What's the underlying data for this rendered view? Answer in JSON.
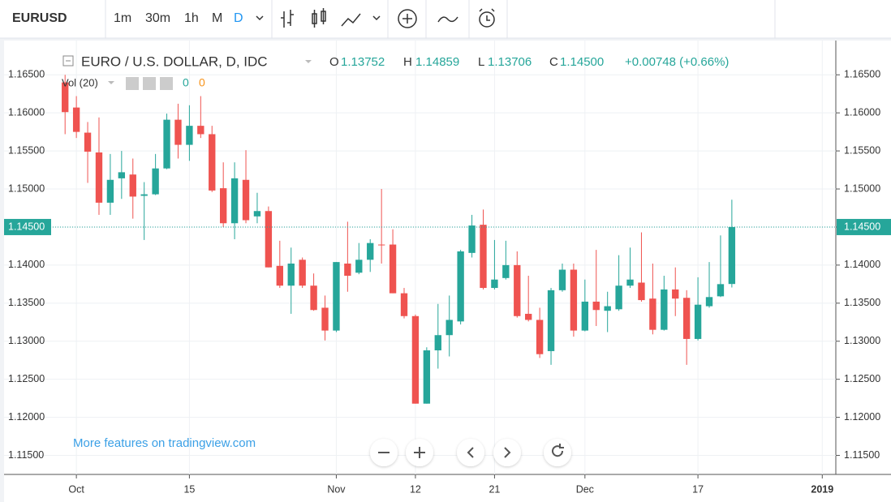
{
  "toolbar": {
    "symbol": "EURUSD",
    "intervals": [
      "1m",
      "30m",
      "1h",
      "M",
      "D"
    ],
    "active_interval": 4
  },
  "chart_data": {
    "type": "candlestick",
    "header": {
      "title": "EURO / U.S. DOLLAR, D, IDC",
      "open_key": "O",
      "open": "1.13752",
      "high_key": "H",
      "high": "1.14859",
      "low_key": "L",
      "low": "1.13706",
      "close_key": "C",
      "close": "1.14500",
      "change": "+0.00748 (+0.66%)"
    },
    "volume_study": {
      "label": "Vol (20)",
      "values": [
        0,
        0
      ]
    },
    "promo": "More features on tradingview.com",
    "up_color": "#26a69a",
    "down_color": "#ef5350",
    "grid": true,
    "open": [
      1.164,
      1.1607,
      1.1574,
      1.1548,
      1.1482,
      1.1514,
      1.1519,
      1.1491,
      1.1493,
      1.1527,
      1.1591,
      1.1558,
      1.1583,
      1.1572,
      1.1501,
      1.1455,
      1.1512,
      1.1464,
      1.1471,
      1.1399,
      1.1373,
      1.1407,
      1.1373,
      1.1344,
      1.1314,
      1.1402,
      1.139,
      1.1407,
      1.1427,
      1.1427,
      1.1363,
      1.1333,
      1.1218,
      1.1288,
      1.1308,
      1.1326,
      1.1416,
      1.1453,
      1.137,
      1.1383,
      1.14,
      1.1336,
      1.1328,
      1.1287,
      1.1367,
      1.1394,
      1.1314,
      1.1352,
      1.134,
      1.1342,
      1.1373,
      1.1377,
      1.1356,
      1.1315,
      1.1368,
      1.1357,
      1.1303,
      1.1346,
      1.1359,
      1.13752
    ],
    "high": [
      1.165,
      1.1622,
      1.1588,
      1.1594,
      1.1546,
      1.155,
      1.154,
      1.1509,
      1.1546,
      1.1599,
      1.1612,
      1.161,
      1.1622,
      1.1583,
      1.1535,
      1.1535,
      1.1551,
      1.1495,
      1.1477,
      1.1432,
      1.1423,
      1.141,
      1.1389,
      1.136,
      1.1404,
      1.1457,
      1.1429,
      1.1434,
      1.15,
      1.1447,
      1.137,
      1.1335,
      1.1292,
      1.1349,
      1.136,
      1.142,
      1.1466,
      1.1473,
      1.1433,
      1.1432,
      1.1418,
      1.1386,
      1.1344,
      1.137,
      1.1402,
      1.1402,
      1.1381,
      1.142,
      1.1365,
      1.1413,
      1.1423,
      1.1443,
      1.1402,
      1.1386,
      1.1397,
      1.1367,
      1.1384,
      1.1404,
      1.1439,
      1.14859
    ],
    "low": [
      1.1572,
      1.1567,
      1.1508,
      1.1466,
      1.1466,
      1.1487,
      1.1461,
      1.1433,
      1.1492,
      1.1526,
      1.154,
      1.1537,
      1.1567,
      1.1496,
      1.145,
      1.1434,
      1.1455,
      1.1455,
      1.1397,
      1.137,
      1.1336,
      1.137,
      1.134,
      1.1301,
      1.1312,
      1.1365,
      1.1388,
      1.1391,
      1.1402,
      1.1363,
      1.133,
      1.1218,
      1.1218,
      1.1264,
      1.128,
      1.1322,
      1.141,
      1.1368,
      1.1368,
      1.1381,
      1.1331,
      1.1326,
      1.1278,
      1.1269,
      1.1365,
      1.1306,
      1.1313,
      1.132,
      1.1312,
      1.134,
      1.137,
      1.1352,
      1.1309,
      1.1314,
      1.1333,
      1.1269,
      1.1301,
      1.1344,
      1.1358,
      1.13706
    ],
    "close": [
      1.1601,
      1.1575,
      1.1549,
      1.1482,
      1.1512,
      1.1522,
      1.149,
      1.1493,
      1.1527,
      1.1591,
      1.1558,
      1.1583,
      1.1572,
      1.1498,
      1.1455,
      1.1514,
      1.1459,
      1.1471,
      1.1397,
      1.1373,
      1.1402,
      1.1373,
      1.1341,
      1.1314,
      1.1404,
      1.1386,
      1.1407,
      1.1429,
      1.1426,
      1.1363,
      1.1333,
      1.1218,
      1.1288,
      1.1308,
      1.1328,
      1.1418,
      1.1452,
      1.137,
      1.1381,
      1.14,
      1.1333,
      1.1328,
      1.1283,
      1.1367,
      1.1394,
      1.1314,
      1.1352,
      1.1341,
      1.1346,
      1.1373,
      1.1381,
      1.1354,
      1.1315,
      1.1368,
      1.1356,
      1.1303,
      1.1348,
      1.1358,
      1.1375,
      1.145
    ],
    "xlim": [
      -5.4,
      68.2
    ],
    "xticks": [
      {
        "value": 1,
        "label": "Oct"
      },
      {
        "value": 11,
        "label": "15"
      },
      {
        "value": 24,
        "label": "Nov"
      },
      {
        "value": 31,
        "label": "12"
      },
      {
        "value": 38,
        "label": "21"
      },
      {
        "value": 46,
        "label": "Dec"
      },
      {
        "value": 56,
        "label": "17"
      },
      {
        "value": 67,
        "label": "2019"
      }
    ],
    "ylim": [
      1.1125,
      1.1695
    ],
    "yticks": [
      {
        "value": 1.115,
        "label": "1.11500"
      },
      {
        "value": 1.12,
        "label": "1.12000"
      },
      {
        "value": 1.125,
        "label": "1.12500"
      },
      {
        "value": 1.13,
        "label": "1.13000"
      },
      {
        "value": 1.135,
        "label": "1.13500"
      },
      {
        "value": 1.14,
        "label": "1.14000"
      },
      {
        "value": 1.145,
        "label": "1.14500"
      },
      {
        "value": 1.15,
        "label": "1.15000"
      },
      {
        "value": 1.155,
        "label": "1.15500"
      },
      {
        "value": 1.16,
        "label": "1.16000"
      },
      {
        "value": 1.165,
        "label": "1.16500"
      }
    ]
  }
}
